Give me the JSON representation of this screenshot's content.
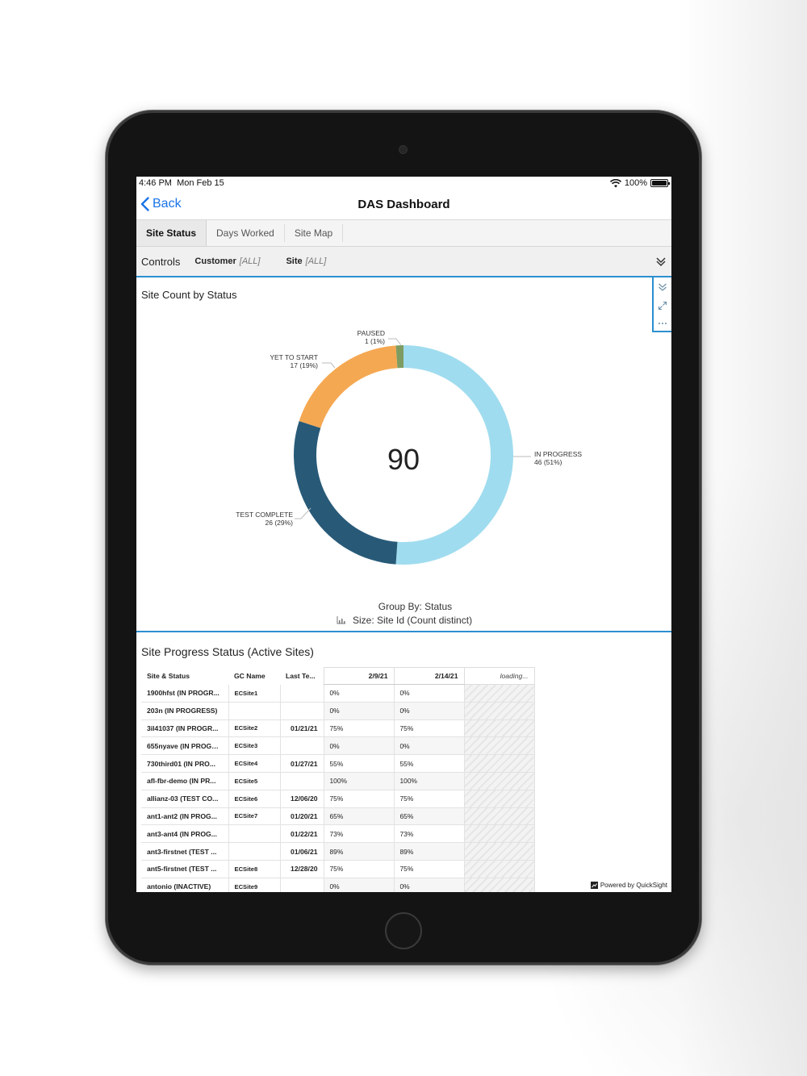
{
  "status_bar": {
    "time": "4:46 PM",
    "date": "Mon Feb 15",
    "battery": "100%"
  },
  "nav": {
    "back_label": "Back",
    "title": "DAS Dashboard"
  },
  "tabs": [
    {
      "label": "Site Status",
      "active": true
    },
    {
      "label": "Days Worked",
      "active": false
    },
    {
      "label": "Site Map",
      "active": false
    }
  ],
  "controls": {
    "label": "Controls",
    "filters": [
      {
        "name": "Customer",
        "value": "[ALL]"
      },
      {
        "name": "Site",
        "value": "[ALL]"
      }
    ]
  },
  "donut": {
    "title": "Site Count by Status",
    "total": "90",
    "group_by": "Group By: Status",
    "size": "Size: Site Id (Count distinct)",
    "labels": {
      "paused": {
        "name": "PAUSED",
        "value": "1 (1%)"
      },
      "yet_to_start": {
        "name": "YET TO START",
        "value": "17 (19%)"
      },
      "in_progress": {
        "name": "IN PROGRESS",
        "value": "46 (51%)"
      },
      "test_complete": {
        "name": "TEST COMPLETE",
        "value": "26 (29%)"
      }
    }
  },
  "chart_data": {
    "type": "pie",
    "title": "Site Count by Status",
    "categories": [
      "IN PROGRESS",
      "TEST COMPLETE",
      "YET TO START",
      "PAUSED"
    ],
    "values": [
      46,
      26,
      17,
      1
    ],
    "percentages": [
      51,
      29,
      19,
      1
    ],
    "colors": [
      "#a0dcef",
      "#285a78",
      "#f5a852",
      "#7e9c62"
    ],
    "total": 90,
    "donut": true
  },
  "progress_table": {
    "title": "Site Progress Status (Active Sites)",
    "columns": [
      "Site & Status",
      "GC Name",
      "Last Te...",
      "2/9/21",
      "2/14/21",
      "loading..."
    ],
    "rows": [
      [
        "1900hfst (IN PROGR...",
        "ECSite1",
        "",
        "0%",
        "0%"
      ],
      [
        "203n (IN PROGRESS)",
        "",
        "",
        "0%",
        "0%"
      ],
      [
        "3il41037 (IN PROGR...",
        "ECSite2",
        "01/21/21",
        "75%",
        "75%"
      ],
      [
        "655nyave (IN PROGR...",
        "ECSite3",
        "",
        "0%",
        "0%"
      ],
      [
        "730third01 (IN PRO...",
        "ECSite4",
        "01/27/21",
        "55%",
        "55%"
      ],
      [
        "afl-fbr-demo (IN PR...",
        "ECSite5",
        "",
        "100%",
        "100%"
      ],
      [
        "allianz-03 (TEST CO...",
        "ECSite6",
        "12/06/20",
        "75%",
        "75%"
      ],
      [
        "ant1-ant2 (IN PROG...",
        "ECSite7",
        "01/20/21",
        "65%",
        "65%"
      ],
      [
        "ant3-ant4 (IN PROG...",
        "",
        "01/22/21",
        "73%",
        "73%"
      ],
      [
        "ant3-firstnet (TEST ...",
        "",
        "01/06/21",
        "89%",
        "89%"
      ],
      [
        "ant5-firstnet (TEST ...",
        "ECSite8",
        "12/28/20",
        "75%",
        "75%"
      ],
      [
        "antonio (INACTIVE)",
        "ECSite9",
        "",
        "0%",
        "0%"
      ]
    ],
    "powered_by": "Powered by QuickSight"
  }
}
